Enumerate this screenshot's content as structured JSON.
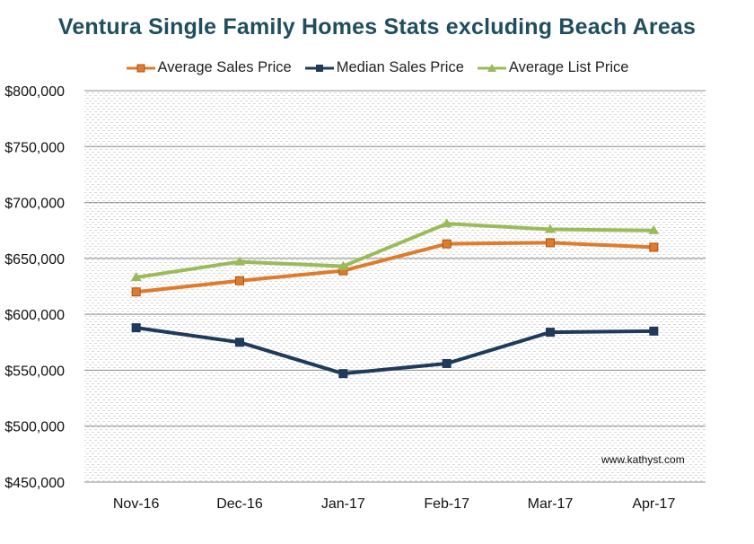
{
  "colors": {
    "title": "#1f4e5f",
    "average_sales_price": "#e07b2a",
    "median_sales_price": "#1f3a5a",
    "average_list_price": "#9bbb59",
    "gridline": "#8c8c8c"
  },
  "watermark": "www.kathyst.com",
  "chart_data": {
    "type": "line",
    "title": "Ventura Single Family Homes Stats excluding Beach Areas",
    "xlabel": "",
    "ylabel": "",
    "categories": [
      "Nov-16",
      "Dec-16",
      "Jan-17",
      "Feb-17",
      "Mar-17",
      "Apr-17"
    ],
    "ylim": [
      450000,
      800000
    ],
    "y_ticks": [
      450000,
      500000,
      550000,
      600000,
      650000,
      700000,
      750000,
      800000
    ],
    "y_tick_labels": [
      "$450,000",
      "$500,000",
      "$550,000",
      "$600,000",
      "$650,000",
      "$700,000",
      "$750,000",
      "$800,000"
    ],
    "grid": true,
    "legend_position": "top",
    "series": [
      {
        "name": "Average Sales Price",
        "color": "#e07b2a",
        "marker": "square",
        "values": [
          620000,
          630000,
          639000,
          663000,
          664000,
          660000
        ]
      },
      {
        "name": "Median Sales Price",
        "color": "#1f3a5a",
        "marker": "square",
        "values": [
          588000,
          575000,
          547000,
          556000,
          584000,
          585000
        ]
      },
      {
        "name": "Average List Price",
        "color": "#9bbb59",
        "marker": "triangle",
        "values": [
          633000,
          647000,
          643000,
          681000,
          676000,
          675000
        ]
      }
    ]
  }
}
